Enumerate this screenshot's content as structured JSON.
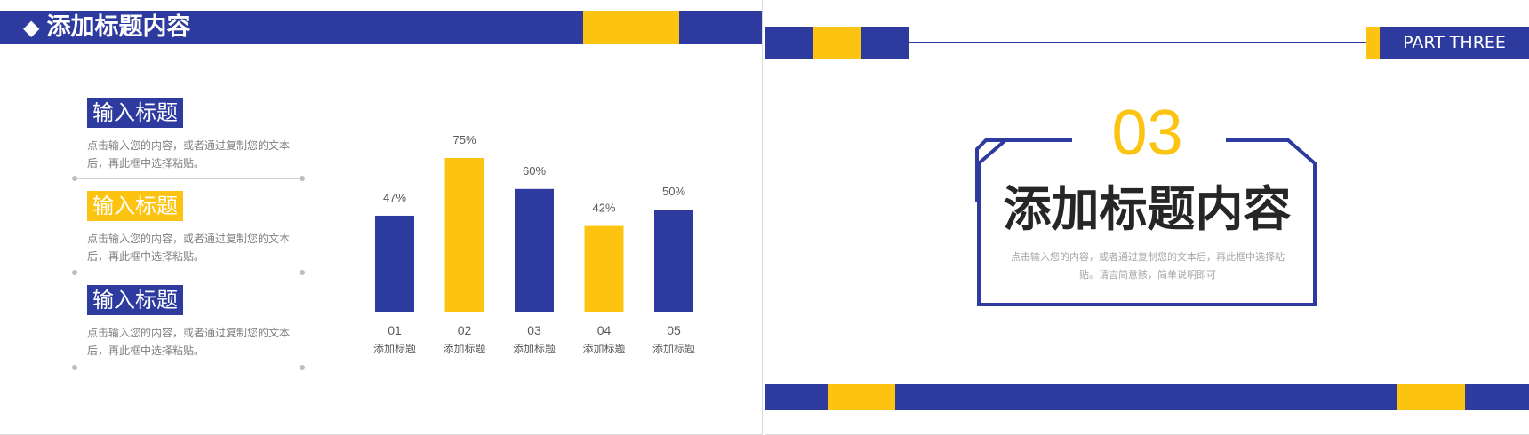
{
  "left_slide": {
    "header": {
      "title": "添加标题内容",
      "bullet_icon": "diamond-icon"
    },
    "items": [
      {
        "title": "输入标题",
        "style": "blue",
        "desc_line1": "点击输入您的内容，或者通过复制您的文本",
        "desc_line2": "后，再此框中选择粘贴。"
      },
      {
        "title": "输入标题",
        "style": "yellow",
        "desc_line1": "点击输入您的内容，或者通过复制您的文本",
        "desc_line2": "后，再此框中选择粘贴。"
      },
      {
        "title": "输入标题",
        "style": "blue",
        "desc_line1": "点击输入您的内容，或者通过复制您的文本",
        "desc_line2": "后，再此框中选择粘贴。"
      }
    ]
  },
  "chart_data": {
    "type": "bar",
    "categories": [
      "01",
      "02",
      "03",
      "04",
      "05"
    ],
    "category_labels": [
      "添加标题",
      "添加标题",
      "添加标题",
      "添加标题",
      "添加标题"
    ],
    "values": [
      47,
      75,
      60,
      42,
      50
    ],
    "value_labels": [
      "47%",
      "75%",
      "60%",
      "42%",
      "50%"
    ],
    "colors": [
      "#2e3b9e",
      "#fcc311",
      "#2e3b9e",
      "#fcc311",
      "#2e3b9e"
    ],
    "ylim": [
      0,
      100
    ],
    "title": "",
    "xlabel": "",
    "ylabel": "",
    "grid": false
  },
  "right_slide": {
    "part_label": "PART THREE",
    "number": "03",
    "title": "添加标题内容",
    "subtitle_line1": "点击输入您的内容，或者通过复制您的文本后，再此框中选择粘",
    "subtitle_line2": "贴。请言简意赅，简单说明即可"
  },
  "colors": {
    "primary": "#2e3b9e",
    "accent": "#fcc311",
    "text": "#262626",
    "muted": "#7f7f7f"
  }
}
